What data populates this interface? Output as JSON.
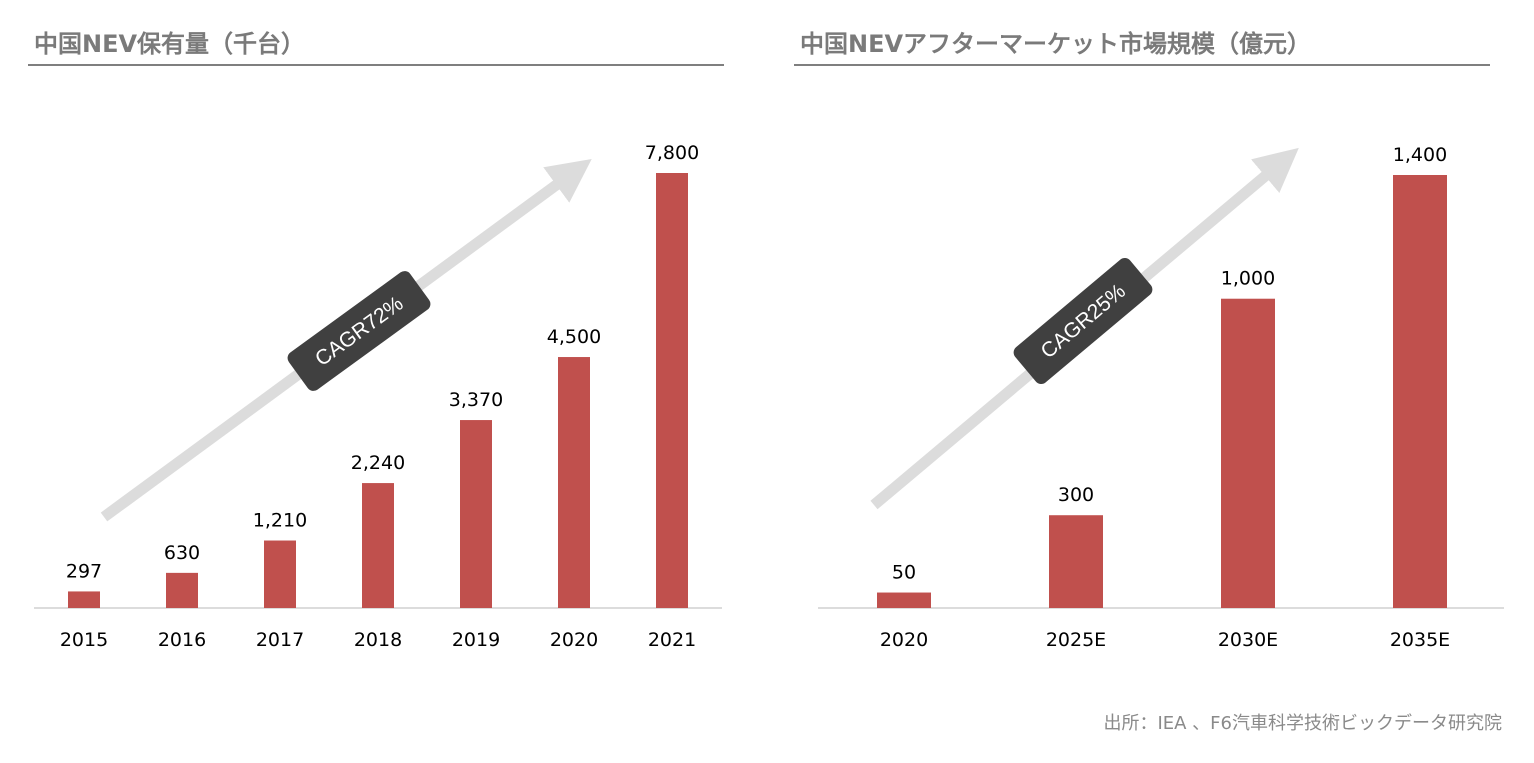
{
  "chart_data": [
    {
      "type": "bar",
      "title": "中国NEV保有量（千台）",
      "categories": [
        "2015",
        "2016",
        "2017",
        "2018",
        "2019",
        "2020",
        "2021"
      ],
      "values": [
        297,
        630,
        1210,
        2240,
        3370,
        4500,
        7800
      ],
      "value_labels": [
        "297",
        "630",
        "1,210",
        "2,240",
        "3,370",
        "4,500",
        "7,800"
      ],
      "annotation": "CAGR72%",
      "ylim": [
        0,
        7800
      ],
      "grid": false,
      "bar_color": "#c0504d"
    },
    {
      "type": "bar",
      "title": "中国NEVアフターマーケット市場規模（億元）",
      "categories": [
        "2020",
        "2025E",
        "2030E",
        "2035E"
      ],
      "values": [
        50,
        300,
        1000,
        1400
      ],
      "value_labels": [
        "50",
        "300",
        "1,000",
        "1,400"
      ],
      "annotation": "CAGR25%",
      "ylim": [
        0,
        1400
      ],
      "grid": false,
      "bar_color": "#c0504d"
    }
  ],
  "source": "出所：IEA 、F6汽車科学技術ビックデータ研究院",
  "colors": {
    "bar": "#c0504d",
    "arrow": "#dcdcdc",
    "badge": "#404040",
    "title_text": "#7a7a7a",
    "title_rule": "#7f7f7f",
    "axis": "#d0d0d0"
  }
}
